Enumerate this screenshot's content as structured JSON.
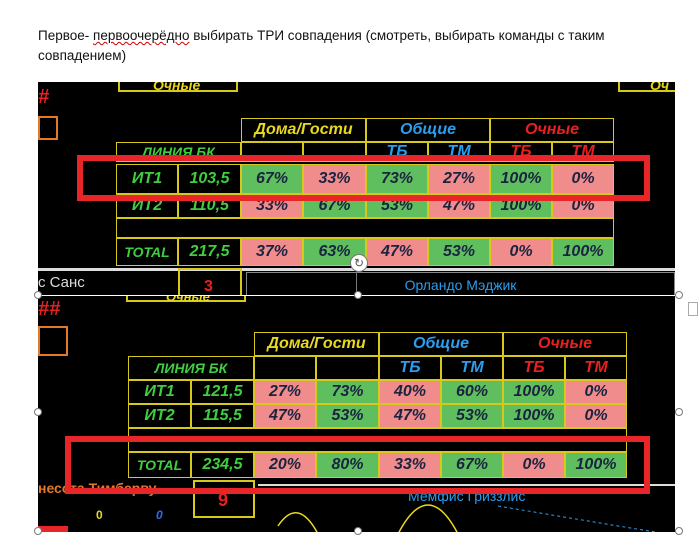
{
  "note": {
    "line_pre": "Первое- ",
    "line_sq": "первоочерёдно",
    "line_post": " выбирать ТРИ совпадения (смотреть, выбирать команды с таким совпадением)"
  },
  "shot1": {
    "top_label": "Очные",
    "top_label_right": "Оч",
    "hash": "#",
    "headers": {
      "home_away": "Дома/Гости",
      "total": "Общие",
      "face": "Очные"
    },
    "line_label": "ЛИНИЯ БК",
    "subheaders": {
      "tb": "ТБ",
      "tm": "ТМ",
      "tb2": "ТБ",
      "tm2": "ТМ"
    },
    "rows": [
      {
        "label": "ИТ1",
        "value": "103,5",
        "cells": [
          "67%",
          "33%",
          "73%",
          "27%",
          "100%",
          "0%"
        ]
      },
      {
        "label": "ИТ2",
        "value": "110,5",
        "cells": [
          "33%",
          "67%",
          "53%",
          "47%",
          "100%",
          "0%"
        ]
      },
      {
        "label": "TOTAL",
        "value": "217,5",
        "cells": [
          "37%",
          "63%",
          "47%",
          "53%",
          "0%",
          "100%"
        ]
      }
    ],
    "team_left": "с Санс",
    "team_right": "Орландо Мэджик",
    "badge": "3"
  },
  "shot2": {
    "top_label": "Очные",
    "hash": "##",
    "headers": {
      "home_away": "Дома/Гости",
      "total": "Общие",
      "face": "Очные"
    },
    "line_label": "ЛИНИЯ БК",
    "subheaders": {
      "tb": "ТБ",
      "tm": "ТМ",
      "tb2": "ТБ",
      "tm2": "ТМ"
    },
    "rows": [
      {
        "label": "ИТ1",
        "value": "121,5",
        "cells": [
          "27%",
          "73%",
          "40%",
          "60%",
          "100%",
          "0%"
        ]
      },
      {
        "label": "ИТ2",
        "value": "115,5",
        "cells": [
          "47%",
          "53%",
          "47%",
          "53%",
          "100%",
          "0%"
        ]
      },
      {
        "label": "TOTAL",
        "value": "234,5",
        "cells": [
          "20%",
          "80%",
          "33%",
          "67%",
          "0%",
          "100%"
        ]
      }
    ],
    "team_left": "несота Тимберву",
    "team_right": "Мемфис Гриззлис",
    "badge": "9",
    "small_yellow": "0",
    "small_blue": "0"
  },
  "colors": {
    "green": "#5fbf5f",
    "pink": "#f08c8c",
    "yellow": "#d8c81a",
    "red_highlight": "#e8262a",
    "blue": "#2a9ef0"
  }
}
